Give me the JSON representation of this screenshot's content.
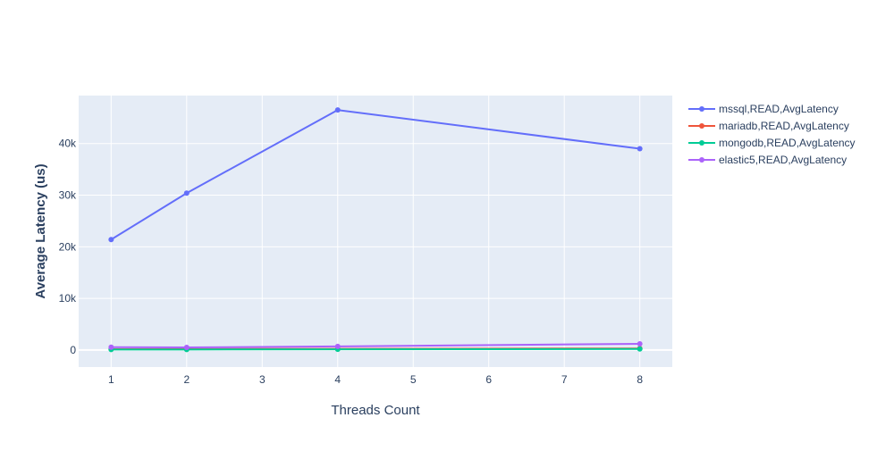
{
  "chart_data": {
    "type": "line",
    "title": "",
    "xlabel": "Threads Count",
    "ylabel": "Average Latency (us)",
    "x": [
      1,
      2,
      4,
      8
    ],
    "xlim": [
      0.57,
      8.43
    ],
    "ylim": [
      -3300,
      49300
    ],
    "xticks": [
      1,
      2,
      3,
      4,
      5,
      6,
      7,
      8
    ],
    "yticks": [
      0,
      10000,
      20000,
      30000,
      40000
    ],
    "ytick_labels": [
      "0",
      "10k",
      "20k",
      "30k",
      "40k"
    ],
    "grid": true,
    "legend_position": "right",
    "series": [
      {
        "name": "mssql,READ,AvgLatency",
        "color": "#636efa",
        "values": [
          21400,
          30400,
          46500,
          39000
        ]
      },
      {
        "name": "mariadb,READ,AvgLatency",
        "color": "#EF553B",
        "values": [
          150,
          180,
          230,
          300
        ]
      },
      {
        "name": "mongodb,READ,AvgLatency",
        "color": "#00cc96",
        "values": [
          90,
          100,
          130,
          200
        ]
      },
      {
        "name": "elastic5,READ,AvgLatency",
        "color": "#ab63fa",
        "values": [
          550,
          500,
          700,
          1200
        ]
      }
    ]
  }
}
